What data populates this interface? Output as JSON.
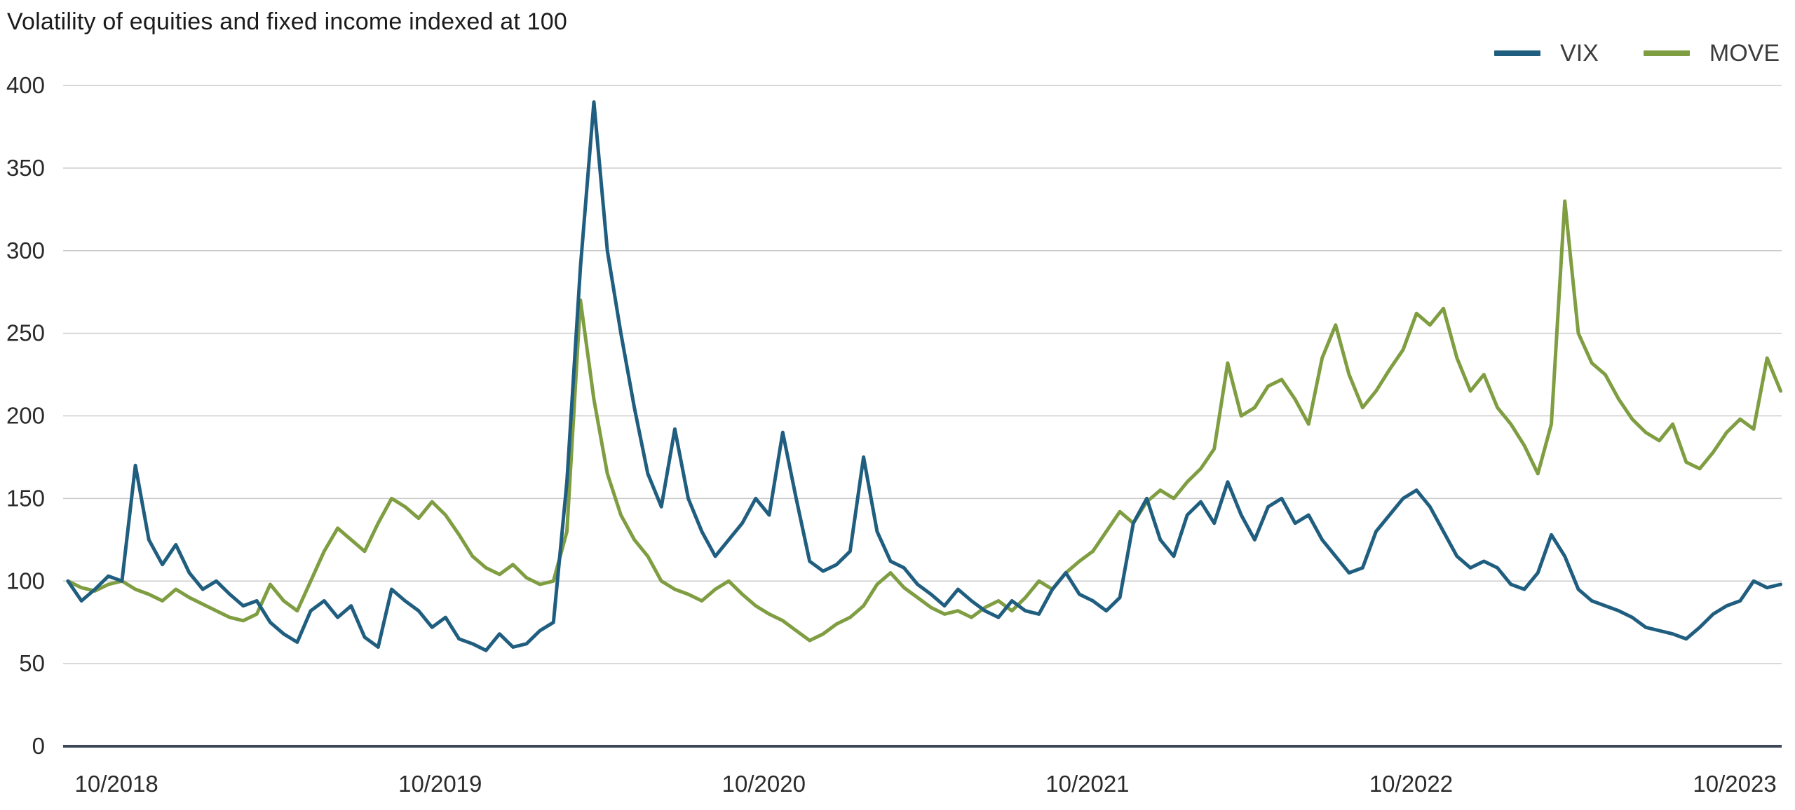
{
  "chart_data": {
    "type": "line",
    "title": "Volatility of equities and fixed income indexed at 100",
    "xlabel": "",
    "ylabel": "",
    "xlim": [
      2018.585,
      2023.895
    ],
    "ylim": [
      0,
      400
    ],
    "y_ticks": [
      400,
      350,
      300,
      250,
      200,
      150,
      100,
      50,
      0
    ],
    "x_ticks": [
      {
        "x": 2018.75,
        "label": "10/2018"
      },
      {
        "x": 2019.75,
        "label": "10/2019"
      },
      {
        "x": 2020.75,
        "label": "10/2020"
      },
      {
        "x": 2021.75,
        "label": "10/2021"
      },
      {
        "x": 2022.75,
        "label": "10/2022"
      },
      {
        "x": 2023.75,
        "label": "10/2023"
      }
    ],
    "x_unit": "decimal_year",
    "x_start": 2018.6,
    "x_step": 0.0416667,
    "grid": "horizontal",
    "legend_position": "top-right",
    "style": {
      "grid_color": "#cbcbcb",
      "axis_color": "#3d4757",
      "tick_text_color": "#2b2b2b",
      "line_width": 5
    },
    "series": [
      {
        "name": "VIX",
        "color": "#205e80",
        "values": [
          100,
          88,
          95,
          103,
          100,
          170,
          125,
          110,
          122,
          105,
          95,
          100,
          92,
          85,
          88,
          75,
          68,
          63,
          82,
          88,
          78,
          85,
          66,
          60,
          95,
          88,
          82,
          72,
          78,
          65,
          62,
          58,
          68,
          60,
          62,
          70,
          75,
          160,
          290,
          390,
          300,
          250,
          205,
          165,
          145,
          192,
          150,
          130,
          115,
          125,
          135,
          150,
          140,
          190,
          150,
          112,
          106,
          110,
          118,
          175,
          130,
          112,
          108,
          98,
          92,
          85,
          95,
          88,
          82,
          78,
          88,
          82,
          80,
          95,
          105,
          92,
          88,
          82,
          90,
          135,
          150,
          125,
          115,
          140,
          148,
          135,
          160,
          140,
          125,
          145,
          150,
          135,
          140,
          125,
          115,
          105,
          108,
          130,
          140,
          150,
          155,
          145,
          130,
          115,
          108,
          112,
          108,
          98,
          95,
          105,
          128,
          115,
          95,
          88,
          85,
          82,
          78,
          72,
          70,
          68,
          65,
          72,
          80,
          85,
          88,
          100,
          96,
          98
        ]
      },
      {
        "name": "MOVE",
        "color": "#7f9d41",
        "values": [
          100,
          96,
          94,
          98,
          100,
          95,
          92,
          88,
          95,
          90,
          86,
          82,
          78,
          76,
          80,
          98,
          88,
          82,
          100,
          118,
          132,
          125,
          118,
          135,
          150,
          145,
          138,
          148,
          140,
          128,
          115,
          108,
          104,
          110,
          102,
          98,
          100,
          130,
          270,
          210,
          165,
          140,
          125,
          115,
          100,
          95,
          92,
          88,
          95,
          100,
          92,
          85,
          80,
          76,
          70,
          64,
          68,
          74,
          78,
          85,
          98,
          105,
          96,
          90,
          84,
          80,
          82,
          78,
          84,
          88,
          82,
          90,
          100,
          95,
          105,
          112,
          118,
          130,
          142,
          135,
          148,
          155,
          150,
          160,
          168,
          180,
          232,
          200,
          205,
          218,
          222,
          210,
          195,
          235,
          255,
          225,
          205,
          215,
          228,
          240,
          262,
          255,
          265,
          235,
          215,
          225,
          205,
          195,
          182,
          165,
          195,
          330,
          250,
          232,
          225,
          210,
          198,
          190,
          185,
          195,
          172,
          168,
          178,
          190,
          198,
          192,
          235,
          215
        ]
      }
    ]
  }
}
